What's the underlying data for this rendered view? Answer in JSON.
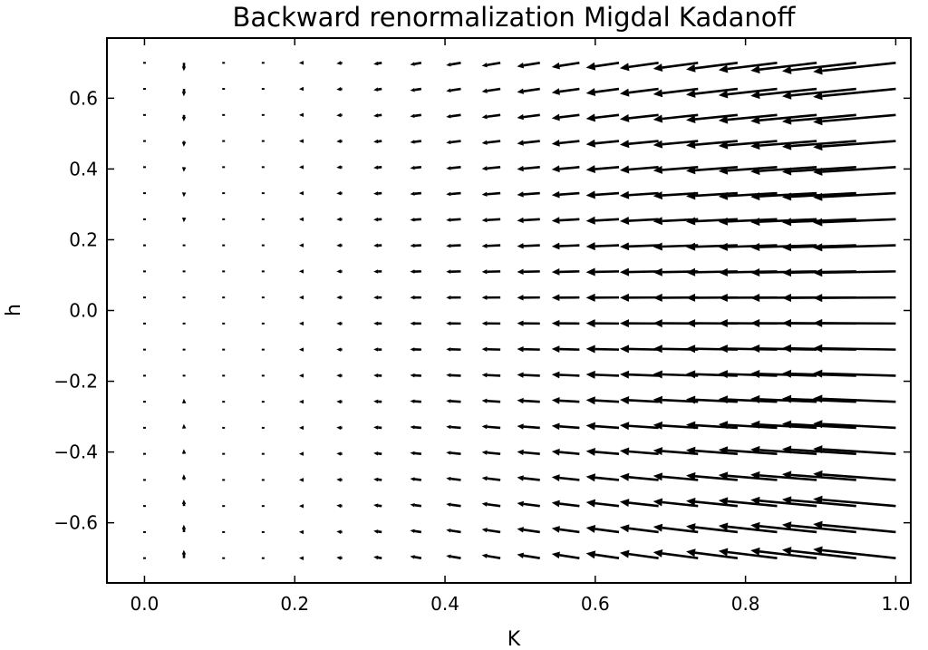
{
  "chart_data": {
    "type": "quiver",
    "title": "Backward renormalization Migdal Kadanoff",
    "xlabel": "K",
    "ylabel": "h",
    "xlim": [
      -0.05,
      1.02
    ],
    "ylim": [
      -0.77,
      0.77
    ],
    "xticks": [
      0.0,
      0.2,
      0.4,
      0.6,
      0.8,
      1.0
    ],
    "xtick_labels": [
      "0.0",
      "0.2",
      "0.4",
      "0.6",
      "0.8",
      "1.0"
    ],
    "yticks": [
      0.6,
      0.4,
      0.2,
      0.0,
      -0.2,
      -0.4,
      -0.6
    ],
    "ytick_labels": [
      "0.6",
      "0.4",
      "0.2",
      "0.0",
      "−0.2",
      "−0.4",
      "−0.6"
    ],
    "grid": false,
    "arrow_color": "#000000",
    "field": {
      "K_range": [
        0.0,
        1.0
      ],
      "K_count": 20,
      "h_range": [
        -0.7,
        0.7
      ],
      "h_count": 20,
      "mapping": "arrow from (K, h) toward the backward-renormalized point; horizontal component grows with K, vertical component points toward h = 0 for K > 0.2 and away from h = 0 below"
    }
  }
}
